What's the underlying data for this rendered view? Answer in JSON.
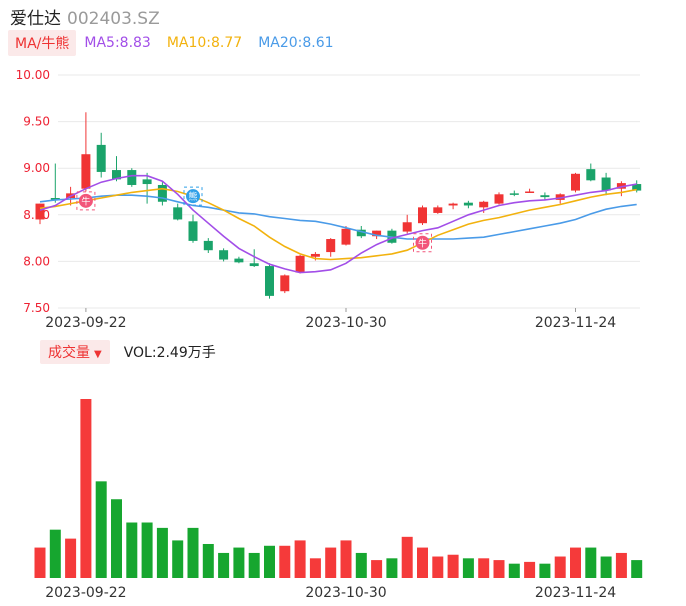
{
  "header": {
    "name": "爱仕达",
    "code": "002403.SZ"
  },
  "ma_legend": {
    "tag": "MA/牛熊",
    "ma5": "MA5:8.83",
    "ma10": "MA10:8.77",
    "ma20": "MA20:8.61"
  },
  "volume_legend": {
    "tag": "成交量",
    "value": "VOL:2.49万手"
  },
  "colors": {
    "up": "#f03434",
    "down": "#1aa36a",
    "vol_up": "#f53a3a",
    "vol_down": "#16a62f",
    "ma5": "#a24ee8",
    "ma10": "#f2b20e",
    "ma20": "#4a9be8"
  },
  "markers": [
    {
      "index": 3,
      "text": "牛",
      "kind": "bull"
    },
    {
      "index": 10,
      "text": "熊",
      "kind": "bear"
    },
    {
      "index": 25,
      "text": "牛",
      "kind": "bull"
    }
  ],
  "chart_data": {
    "type": "candlestick",
    "price_axis": {
      "ylim": [
        7.5,
        10.0
      ],
      "ticks": [
        "10.00",
        "9.50",
        "9.00",
        "8.50",
        "8.00",
        "7.50"
      ]
    },
    "x_tick_labels": [
      {
        "index": 3,
        "label": "2023-09-22"
      },
      {
        "index": 20,
        "label": "2023-10-30"
      },
      {
        "index": 35,
        "label": "2023-11-24"
      }
    ],
    "candles": [
      {
        "o": 8.45,
        "h": 8.62,
        "l": 8.4,
        "c": 8.62
      },
      {
        "o": 8.68,
        "h": 9.05,
        "l": 8.63,
        "c": 8.66
      },
      {
        "o": 8.68,
        "h": 8.8,
        "l": 8.6,
        "c": 8.73
      },
      {
        "o": 8.78,
        "h": 9.6,
        "l": 8.75,
        "c": 9.15
      },
      {
        "o": 9.25,
        "h": 9.38,
        "l": 8.9,
        "c": 8.96
      },
      {
        "o": 8.98,
        "h": 9.13,
        "l": 8.86,
        "c": 8.88
      },
      {
        "o": 8.98,
        "h": 9.0,
        "l": 8.8,
        "c": 8.82
      },
      {
        "o": 8.88,
        "h": 8.95,
        "l": 8.62,
        "c": 8.83
      },
      {
        "o": 8.82,
        "h": 8.85,
        "l": 8.6,
        "c": 8.64
      },
      {
        "o": 8.58,
        "h": 8.62,
        "l": 8.44,
        "c": 8.45
      },
      {
        "o": 8.43,
        "h": 8.5,
        "l": 8.2,
        "c": 8.22
      },
      {
        "o": 8.22,
        "h": 8.25,
        "l": 8.09,
        "c": 8.12
      },
      {
        "o": 8.12,
        "h": 8.14,
        "l": 8.0,
        "c": 8.02
      },
      {
        "o": 8.03,
        "h": 8.05,
        "l": 7.98,
        "c": 7.99
      },
      {
        "o": 7.98,
        "h": 8.13,
        "l": 7.94,
        "c": 7.95
      },
      {
        "o": 7.95,
        "h": 7.98,
        "l": 7.6,
        "c": 7.63
      },
      {
        "o": 7.68,
        "h": 7.86,
        "l": 7.66,
        "c": 7.85
      },
      {
        "o": 7.88,
        "h": 8.07,
        "l": 7.87,
        "c": 8.06
      },
      {
        "o": 8.05,
        "h": 8.1,
        "l": 8.01,
        "c": 8.08
      },
      {
        "o": 8.1,
        "h": 8.25,
        "l": 8.05,
        "c": 8.24
      },
      {
        "o": 8.18,
        "h": 8.38,
        "l": 8.17,
        "c": 8.35
      },
      {
        "o": 8.34,
        "h": 8.38,
        "l": 8.25,
        "c": 8.27
      },
      {
        "o": 8.27,
        "h": 8.33,
        "l": 8.24,
        "c": 8.33
      },
      {
        "o": 8.33,
        "h": 8.35,
        "l": 8.19,
        "c": 8.2
      },
      {
        "o": 8.32,
        "h": 8.5,
        "l": 8.3,
        "c": 8.42
      },
      {
        "o": 8.41,
        "h": 8.6,
        "l": 8.39,
        "c": 8.58
      },
      {
        "o": 8.52,
        "h": 8.6,
        "l": 8.51,
        "c": 8.58
      },
      {
        "o": 8.6,
        "h": 8.63,
        "l": 8.56,
        "c": 8.62
      },
      {
        "o": 8.63,
        "h": 8.65,
        "l": 8.57,
        "c": 8.6
      },
      {
        "o": 8.58,
        "h": 8.65,
        "l": 8.52,
        "c": 8.64
      },
      {
        "o": 8.62,
        "h": 8.74,
        "l": 8.61,
        "c": 8.72
      },
      {
        "o": 8.73,
        "h": 8.76,
        "l": 8.7,
        "c": 8.72
      },
      {
        "o": 8.75,
        "h": 8.78,
        "l": 8.74,
        "c": 8.75
      },
      {
        "o": 8.71,
        "h": 8.74,
        "l": 8.66,
        "c": 8.69
      },
      {
        "o": 8.66,
        "h": 8.73,
        "l": 8.62,
        "c": 8.72
      },
      {
        "o": 8.76,
        "h": 8.95,
        "l": 8.74,
        "c": 8.94
      },
      {
        "o": 8.99,
        "h": 9.05,
        "l": 8.86,
        "c": 8.87
      },
      {
        "o": 8.9,
        "h": 8.95,
        "l": 8.71,
        "c": 8.76
      },
      {
        "o": 8.78,
        "h": 8.86,
        "l": 8.7,
        "c": 8.84
      },
      {
        "o": 8.83,
        "h": 8.87,
        "l": 8.74,
        "c": 8.76
      }
    ],
    "ma5": [
      8.55,
      8.6,
      8.7,
      8.78,
      8.85,
      8.89,
      8.92,
      8.92,
      8.86,
      8.72,
      8.55,
      8.41,
      8.27,
      8.14,
      8.05,
      7.97,
      7.92,
      7.88,
      7.89,
      7.91,
      7.98,
      8.09,
      8.18,
      8.25,
      8.29,
      8.33,
      8.36,
      8.43,
      8.5,
      8.55,
      8.6,
      8.63,
      8.65,
      8.66,
      8.68,
      8.71,
      8.74,
      8.76,
      8.8,
      8.83
    ],
    "ma10": [
      8.57,
      8.59,
      8.62,
      8.65,
      8.68,
      8.71,
      8.74,
      8.76,
      8.78,
      8.75,
      8.7,
      8.63,
      8.55,
      8.46,
      8.38,
      8.26,
      8.16,
      8.08,
      8.03,
      8.02,
      8.03,
      8.04,
      8.06,
      8.08,
      8.12,
      8.2,
      8.28,
      8.34,
      8.4,
      8.44,
      8.47,
      8.51,
      8.55,
      8.58,
      8.61,
      8.65,
      8.69,
      8.72,
      8.74,
      8.77
    ],
    "ma20": [
      8.64,
      8.66,
      8.67,
      8.68,
      8.7,
      8.71,
      8.71,
      8.7,
      8.68,
      8.64,
      8.6,
      8.58,
      8.55,
      8.52,
      8.51,
      8.48,
      8.46,
      8.44,
      8.43,
      8.4,
      8.36,
      8.32,
      8.28,
      8.26,
      8.24,
      8.24,
      8.24,
      8.24,
      8.25,
      8.26,
      8.29,
      8.32,
      8.35,
      8.38,
      8.41,
      8.45,
      8.51,
      8.56,
      8.59,
      8.61
    ],
    "volume": [
      0.17,
      0.27,
      0.22,
      1.0,
      0.54,
      0.44,
      0.31,
      0.31,
      0.28,
      0.21,
      0.28,
      0.19,
      0.14,
      0.17,
      0.14,
      0.18,
      0.18,
      0.21,
      0.11,
      0.17,
      0.21,
      0.14,
      0.1,
      0.11,
      0.23,
      0.17,
      0.12,
      0.13,
      0.11,
      0.11,
      0.1,
      0.08,
      0.09,
      0.08,
      0.12,
      0.17,
      0.17,
      0.12,
      0.14,
      0.1
    ]
  }
}
